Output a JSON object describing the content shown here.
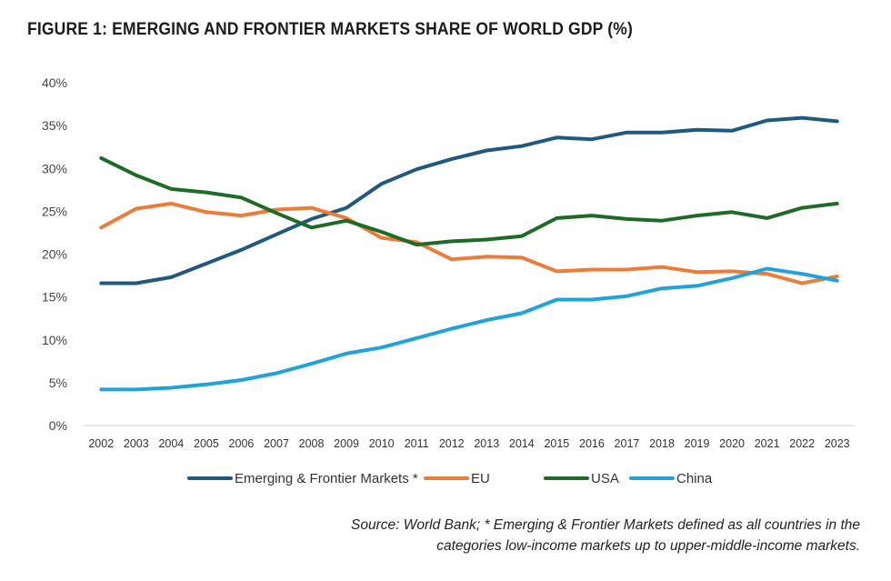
{
  "title": "FIGURE 1: EMERGING AND FRONTIER MARKETS SHARE OF WORLD GDP (%)",
  "source": {
    "line1": "Source: World Bank; * Emerging & Frontier Markets defined as all countries in the",
    "line2": "categories low-income markets up to upper-middle-income markets."
  },
  "chart_data": {
    "type": "line",
    "title": "FIGURE 1: EMERGING AND FRONTIER MARKETS SHARE OF WORLD GDP (%)",
    "xlabel": "",
    "ylabel": "",
    "ylim": [
      0,
      40
    ],
    "yticks": [
      0,
      5,
      10,
      15,
      20,
      25,
      30,
      35,
      40
    ],
    "ytick_labels": [
      "0%",
      "5%",
      "10%",
      "15%",
      "20%",
      "25%",
      "30%",
      "35%",
      "40%"
    ],
    "grid": false,
    "legend": "bottom",
    "categories": [
      "2002",
      "2003",
      "2004",
      "2005",
      "2006",
      "2007",
      "2008",
      "2009",
      "2010",
      "2011",
      "2012",
      "2013",
      "2014",
      "2015",
      "2016",
      "2017",
      "2018",
      "2019",
      "2020",
      "2021",
      "2022",
      "2023"
    ],
    "series": [
      {
        "name": "Emerging & Frontier Markets *",
        "color": "#1f5a7e",
        "values": [
          16.6,
          16.6,
          17.3,
          18.9,
          20.5,
          22.3,
          24.1,
          25.4,
          28.2,
          29.9,
          31.1,
          32.1,
          32.6,
          33.6,
          33.4,
          34.2,
          34.2,
          34.5,
          34.4,
          35.6,
          35.9,
          35.5
        ]
      },
      {
        "name": "EU",
        "color": "#ec7c3a",
        "values": [
          23.1,
          25.3,
          25.9,
          24.9,
          24.5,
          25.2,
          25.4,
          24.2,
          21.9,
          21.4,
          19.4,
          19.7,
          19.6,
          18.0,
          18.2,
          18.2,
          18.5,
          17.9,
          18.0,
          17.7,
          16.6,
          17.4
        ]
      },
      {
        "name": "USA",
        "color": "#1e6b25",
        "values": [
          31.2,
          29.2,
          27.6,
          27.2,
          26.6,
          24.8,
          23.1,
          23.9,
          22.6,
          21.1,
          21.5,
          21.7,
          22.1,
          24.2,
          24.5,
          24.1,
          23.9,
          24.5,
          24.9,
          24.2,
          25.4,
          25.9
        ]
      },
      {
        "name": "China",
        "color": "#20a3d8",
        "values": [
          4.2,
          4.2,
          4.4,
          4.8,
          5.3,
          6.1,
          7.2,
          8.4,
          9.1,
          10.2,
          11.3,
          12.3,
          13.1,
          14.7,
          14.7,
          15.1,
          16.0,
          16.3,
          17.2,
          18.3,
          17.7,
          16.9
        ]
      }
    ]
  }
}
